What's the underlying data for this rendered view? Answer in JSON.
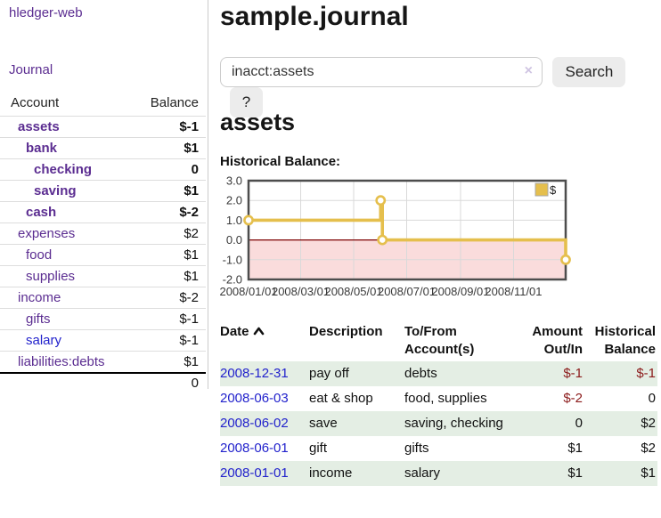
{
  "colors": {
    "link_purple": "#5b2d91",
    "link_blue": "#2222cc",
    "negative_strong": "#8b1a1a",
    "negative_muted": "#b98888",
    "row_shade_green": "#e4eee4",
    "chart_line_gold": "#e5bf4d",
    "chart_negative_region_pink": "#fadcdc",
    "chart_zero_line_red": "#7d0000"
  },
  "sidebar": {
    "app_title": "hledger-web",
    "journal_label": "Journal",
    "accounts_table": {
      "headers": {
        "account": "Account",
        "balance": "Balance"
      },
      "rows": [
        {
          "name": "assets",
          "balance": "$-1",
          "indent": 1,
          "bold": true,
          "negative": true,
          "unvisited": false
        },
        {
          "name": "bank",
          "balance": "$1",
          "indent": 2,
          "bold": true,
          "negative": false,
          "unvisited": false
        },
        {
          "name": "checking",
          "balance": "0",
          "indent": 3,
          "bold": true,
          "negative": false,
          "unvisited": false
        },
        {
          "name": "saving",
          "balance": "$1",
          "indent": 3,
          "bold": true,
          "negative": false,
          "unvisited": false
        },
        {
          "name": "cash",
          "balance": "$-2",
          "indent": 2,
          "bold": true,
          "negative": true,
          "unvisited": false
        },
        {
          "name": "expenses",
          "balance": "$2",
          "indent": 1,
          "bold": false,
          "negative": false,
          "unvisited": false
        },
        {
          "name": "food",
          "balance": "$1",
          "indent": 2,
          "bold": false,
          "negative": false,
          "unvisited": false
        },
        {
          "name": "supplies",
          "balance": "$1",
          "indent": 2,
          "bold": false,
          "negative": false,
          "unvisited": false
        },
        {
          "name": "income",
          "balance": "$-2",
          "indent": 1,
          "bold": false,
          "negative": true,
          "unvisited": false
        },
        {
          "name": "gifts",
          "balance": "$-1",
          "indent": 2,
          "bold": false,
          "negative": true,
          "unvisited": false
        },
        {
          "name": "salary",
          "balance": "$-1",
          "indent": 2,
          "bold": false,
          "negative": true,
          "unvisited": true
        },
        {
          "name": "liabilities:debts",
          "balance": "$1",
          "indent": 1,
          "bold": false,
          "negative": false,
          "unvisited": false
        }
      ],
      "total": "0"
    }
  },
  "header": {
    "title": "sample.journal"
  },
  "search": {
    "value": "inacct:assets",
    "clear_icon": "×",
    "button_label": "Search",
    "help_label": "?"
  },
  "account_page": {
    "title": "assets",
    "chart_label": "Historical Balance:"
  },
  "chart_data": {
    "type": "line",
    "step": true,
    "title": "Historical Balance:",
    "series": [
      {
        "name": "$",
        "points": [
          [
            "2008-01-01",
            1
          ],
          [
            "2008-06-01",
            2
          ],
          [
            "2008-06-03",
            0
          ],
          [
            "2008-12-31",
            -1
          ]
        ]
      }
    ],
    "x_range": [
      "2008-01-01",
      "2008-12-31"
    ],
    "ylim": [
      -2,
      3
    ],
    "yticks": [
      3.0,
      2.0,
      1.0,
      0.0,
      -1.0,
      -2.0
    ],
    "ytick_labels": [
      "3.0",
      "2.0",
      "1.0",
      "0.0",
      "-1.0",
      "-2.0"
    ],
    "xtick_dates": [
      "2008-01-01",
      "2008-03-01",
      "2008-05-01",
      "2008-07-01",
      "2008-09-01",
      "2008-11-01"
    ],
    "xtick_labels": [
      "2008/01/01",
      "2008/03/01",
      "2008/05/01",
      "2008/07/01",
      "2008/09/01",
      "2008/11/01"
    ],
    "legend": {
      "label": "$",
      "position": "top-right"
    },
    "grid": true,
    "negative_region_shaded": true
  },
  "register": {
    "headers": {
      "date": "Date",
      "description": "Description",
      "account": "To/From Account(s)",
      "amount": "Amount Out/In",
      "balance": "Historical Balance"
    },
    "rows": [
      {
        "date": "2008-12-31",
        "description": "pay off",
        "accounts": "debts",
        "amount": "$-1",
        "balance": "$-1",
        "amount_negative": true,
        "balance_negative": true,
        "shaded": true
      },
      {
        "date": "2008-06-03",
        "description": "eat & shop",
        "accounts": "food, supplies",
        "amount": "$-2",
        "balance": "0",
        "amount_negative": true,
        "balance_negative": false,
        "shaded": false
      },
      {
        "date": "2008-06-02",
        "description": "save",
        "accounts": "saving, checking",
        "amount": "0",
        "balance": "$2",
        "amount_negative": false,
        "balance_negative": false,
        "shaded": true
      },
      {
        "date": "2008-06-01",
        "description": "gift",
        "accounts": "gifts",
        "amount": "$1",
        "balance": "$2",
        "amount_negative": false,
        "balance_negative": false,
        "shaded": false
      },
      {
        "date": "2008-01-01",
        "description": "income",
        "accounts": "salary",
        "amount": "$1",
        "balance": "$1",
        "amount_negative": false,
        "balance_negative": false,
        "shaded": true
      }
    ]
  }
}
